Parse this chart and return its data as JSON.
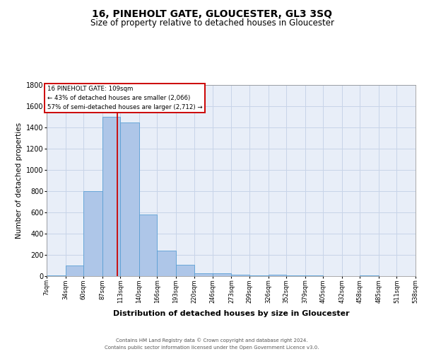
{
  "title": "16, PINEHOLT GATE, GLOUCESTER, GL3 3SQ",
  "subtitle": "Size of property relative to detached houses in Gloucester",
  "xlabel": "Distribution of detached houses by size in Gloucester",
  "ylabel": "Number of detached properties",
  "bin_edges": [
    7,
    34,
    60,
    87,
    113,
    140,
    166,
    193,
    220,
    246,
    273,
    299,
    326,
    352,
    379,
    405,
    432,
    458,
    485,
    511,
    538
  ],
  "bin_labels": [
    "7sqm",
    "34sqm",
    "60sqm",
    "87sqm",
    "113sqm",
    "140sqm",
    "166sqm",
    "193sqm",
    "220sqm",
    "246sqm",
    "273sqm",
    "299sqm",
    "326sqm",
    "352sqm",
    "379sqm",
    "405sqm",
    "432sqm",
    "458sqm",
    "485sqm",
    "511sqm",
    "538sqm"
  ],
  "values": [
    5,
    100,
    800,
    1500,
    1450,
    580,
    240,
    110,
    30,
    25,
    15,
    5,
    15,
    5,
    5,
    0,
    0,
    5,
    0,
    0
  ],
  "bar_color": "#aec6e8",
  "bar_edge_color": "#5a9fd4",
  "property_line_x": 109,
  "property_line_color": "#cc0000",
  "annotation_line1": "16 PINEHOLT GATE: 109sqm",
  "annotation_line2": "← 43% of detached houses are smaller (2,066)",
  "annotation_line3": "57% of semi-detached houses are larger (2,712) →",
  "annotation_box_edge_color": "#cc0000",
  "ylim": [
    0,
    1800
  ],
  "yticks": [
    0,
    200,
    400,
    600,
    800,
    1000,
    1200,
    1400,
    1600,
    1800
  ],
  "grid_color": "#c8d4e8",
  "background_color": "#e8eef8",
  "footer_line1": "Contains HM Land Registry data © Crown copyright and database right 2024.",
  "footer_line2": "Contains public sector information licensed under the Open Government Licence v3.0.",
  "title_fontsize": 10,
  "subtitle_fontsize": 8.5,
  "xlabel_fontsize": 8,
  "ylabel_fontsize": 7.5
}
